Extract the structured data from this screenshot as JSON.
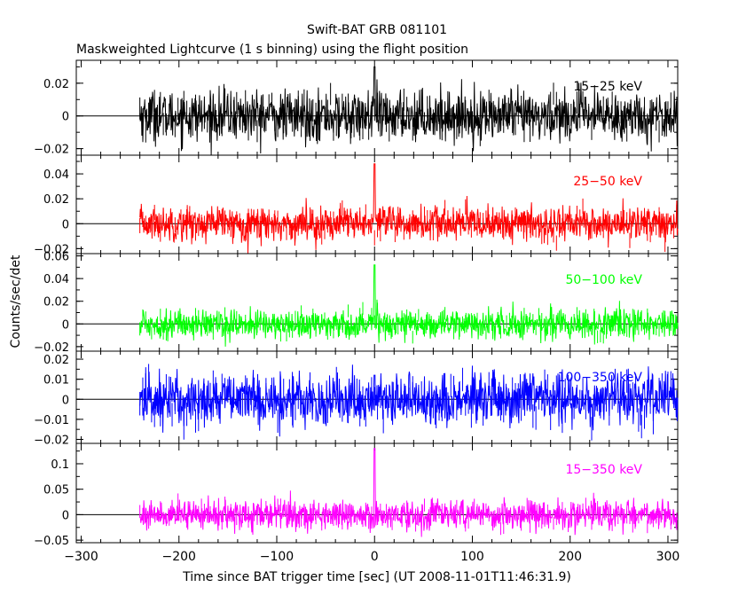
{
  "chart_data": {
    "type": "line",
    "title": "Swift-BAT GRB 081101",
    "subtitle": "Maskweighted Lightcurve (1 s binning) using the flight position",
    "xlabel": "Time since BAT trigger time [sec] (UT 2008-11-01T11:46:31.9)",
    "ylabel": "Counts/sec/det",
    "xlim": [
      -305,
      310
    ],
    "x_ticks": [
      -300,
      -200,
      -100,
      0,
      100,
      200,
      300
    ],
    "x_tick_labels": [
      "−300",
      "−200",
      "−100",
      "0",
      "100",
      "200",
      "300"
    ],
    "data_x_range": [
      -240,
      310
    ],
    "grid": false,
    "panels": [
      {
        "band": "15−25 keV",
        "color": "#000000",
        "ylim": [
          -0.024,
          0.034
        ],
        "y_ticks": [
          -0.02,
          0,
          0.02
        ],
        "y_tick_labels": [
          "−0.02",
          "0",
          "0.02"
        ],
        "noise_sigma": 0.0075,
        "peak": {
          "x": 0,
          "y": 0.03
        }
      },
      {
        "band": "25−50 keV",
        "color": "#ff0000",
        "ylim": [
          -0.024,
          0.055
        ],
        "y_ticks": [
          -0.02,
          0,
          0.02,
          0.04
        ],
        "y_tick_labels": [
          "−0.02",
          "0",
          "0.02",
          "0.04"
        ],
        "noise_sigma": 0.0068,
        "peak": {
          "x": 0,
          "y": 0.048
        }
      },
      {
        "band": "50−100 keV",
        "color": "#00ff00",
        "ylim": [
          -0.024,
          0.062
        ],
        "y_ticks": [
          -0.02,
          0,
          0.02,
          0.04,
          0.06
        ],
        "y_tick_labels": [
          "−0.02",
          "0",
          "0.02",
          "0.04",
          "0.06"
        ],
        "noise_sigma": 0.0062,
        "peak": {
          "x": 0,
          "y": 0.052
        }
      },
      {
        "band": "100−350 keV",
        "color": "#0000ff",
        "ylim": [
          -0.022,
          0.024
        ],
        "y_ticks": [
          -0.02,
          -0.01,
          0,
          0.01,
          0.02
        ],
        "y_tick_labels": [
          "−0.02",
          "−0.01",
          "0",
          "0.01",
          "0.02"
        ],
        "noise_sigma": 0.0065,
        "peak": {
          "x": 0,
          "y": 0.012
        }
      },
      {
        "band": "15−350 keV",
        "color": "#ff00ff",
        "ylim": [
          -0.055,
          0.14
        ],
        "y_ticks": [
          -0.05,
          0,
          0.05,
          0.1
        ],
        "y_tick_labels": [
          "−0.05",
          "0",
          "0.05",
          "0.1"
        ],
        "noise_sigma": 0.014,
        "peak": {
          "x": 0,
          "y": 0.13
        }
      }
    ]
  }
}
